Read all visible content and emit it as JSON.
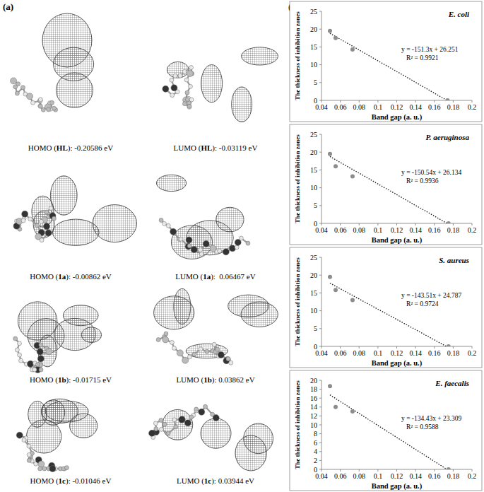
{
  "figure": {
    "panel_a_label": "(a)",
    "panel_b_label": "(b)",
    "orbitals": [
      {
        "prefix": "HOMO (",
        "compound": "HL",
        "suffix": "): -0.20586 eV"
      },
      {
        "prefix": "LUMO (",
        "compound": "HL",
        "suffix": "): -0.03119 eV"
      },
      {
        "prefix": "HOMO (",
        "compound": "1a",
        "suffix": "): -0.00862 eV"
      },
      {
        "prefix": "LUMO (",
        "compound": "1a",
        "suffix": "):  0.06467 eV"
      },
      {
        "prefix": "HOMO (",
        "compound": "1b",
        "suffix": "): -0.01715 eV"
      },
      {
        "prefix": "LUMO (",
        "compound": "1b",
        "suffix": "): 0.03862 eV"
      },
      {
        "prefix": "HOMO (",
        "compound": "1c",
        "suffix": "): -0.01046 eV"
      },
      {
        "prefix": "LUMO (",
        "compound": "1c",
        "suffix": "): 0.03944 eV"
      }
    ]
  },
  "chart_data": [
    {
      "type": "scatter",
      "title": "E. coli",
      "x_label": "Band gap (a. u.)",
      "y_label": "The thickness of inhibition zones",
      "x": [
        0.049,
        0.055,
        0.073,
        0.174
      ],
      "values": [
        19.5,
        17.5,
        14.3,
        0
      ],
      "color": "#8c8c8c",
      "marker": "circle",
      "xlim": [
        0.04,
        0.2
      ],
      "xticks": [
        0.04,
        0.06,
        0.08,
        0.1,
        0.12,
        0.14,
        0.16,
        0.18,
        0.2
      ],
      "ylim": [
        0,
        25
      ],
      "yticks": [
        0,
        5,
        10,
        15,
        20,
        25
      ],
      "trendline": {
        "label": "y = -151.3x + 26.251",
        "r2_label": "R² = 0.9921",
        "slope": -151.3,
        "intercept": 26.251,
        "x": [
          0.049,
          0.174
        ],
        "line_style": "dotted"
      }
    },
    {
      "type": "scatter",
      "title": "P. aeruginosa",
      "x_label": "Band gap (a. u.)",
      "y_label": "The thickness of inhibition zones",
      "x": [
        0.049,
        0.055,
        0.073,
        0.175
      ],
      "values": [
        19.5,
        16,
        13.2,
        0
      ],
      "color": "#8c8c8c",
      "marker": "circle",
      "xlim": [
        0.04,
        0.2
      ],
      "xticks": [
        0.04,
        0.06,
        0.08,
        0.1,
        0.12,
        0.14,
        0.16,
        0.18,
        0.2
      ],
      "ylim": [
        0,
        25
      ],
      "yticks": [
        0,
        5,
        10,
        15,
        20,
        25
      ],
      "trendline": {
        "label": "y = -150.54x + 26.134",
        "r2_label": "R² = 0.9936",
        "slope": -150.54,
        "intercept": 26.134,
        "x": [
          0.049,
          0.175
        ],
        "line_style": "dotted"
      }
    },
    {
      "type": "scatter",
      "title": "S. aureus",
      "x_label": "Band gap (a. u.)",
      "y_label": "The thickness of inhibition zones",
      "x": [
        0.049,
        0.055,
        0.073,
        0.175
      ],
      "values": [
        19.5,
        15.8,
        13,
        0
      ],
      "color": "#8c8c8c",
      "marker": "circle",
      "xlim": [
        0.04,
        0.2
      ],
      "xticks": [
        0.04,
        0.06,
        0.08,
        0.1,
        0.12,
        0.14,
        0.16,
        0.18,
        0.2
      ],
      "ylim": [
        0,
        25
      ],
      "yticks": [
        0,
        5,
        10,
        15,
        20,
        25
      ],
      "trendline": {
        "label": "y = -143.51x + 24.787",
        "r2_label": "R² = 0.9724",
        "slope": -143.51,
        "intercept": 24.787,
        "x": [
          0.049,
          0.175
        ],
        "line_style": "dotted"
      }
    },
    {
      "type": "scatter",
      "title": "E. faecalis",
      "x_label": "Band gap (a. u.)",
      "y_label": "The thickness of inhibition zones",
      "x": [
        0.049,
        0.055,
        0.073,
        0.175
      ],
      "values": [
        18.7,
        14,
        13,
        0
      ],
      "color": "#8c8c8c",
      "marker": "circle",
      "xlim": [
        0.04,
        0.2
      ],
      "xticks": [
        0.04,
        0.06,
        0.08,
        0.1,
        0.12,
        0.14,
        0.16,
        0.18,
        0.2
      ],
      "ylim": [
        0,
        20
      ],
      "yticks": [
        0,
        2,
        4,
        6,
        8,
        10,
        12,
        14,
        16,
        18,
        20
      ],
      "trendline": {
        "label": "y = -134.43x + 23.309",
        "r2_label": "R² = 0.9588",
        "slope": -134.43,
        "intercept": 23.309,
        "x": [
          0.049,
          0.175
        ],
        "line_style": "dotted"
      }
    }
  ]
}
